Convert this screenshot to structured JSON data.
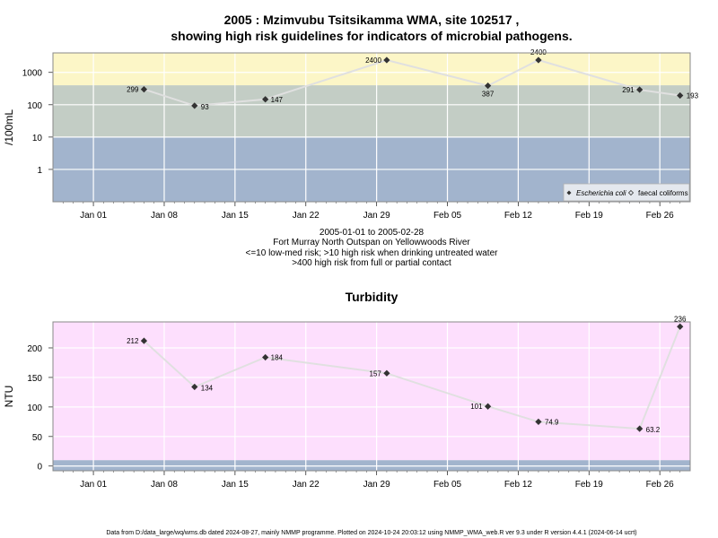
{
  "chart_data": [
    {
      "type": "line",
      "title": "2005 : Mzimvubu Tsitsikamma WMA, site 102517 ,",
      "subtitle": "showing high risk guidelines for indicators of microbial pathogens.",
      "xlabel": "",
      "ylabel": "/100mL",
      "y_scale": "log",
      "ylim": [
        0.1,
        4000
      ],
      "xlim": [
        "2004-12-28",
        "2005-03-01"
      ],
      "x_ticks": [
        {
          "date": "2005-01-01",
          "label": "Jan 01"
        },
        {
          "date": "2005-01-08",
          "label": "Jan 08"
        },
        {
          "date": "2005-01-15",
          "label": "Jan 15"
        },
        {
          "date": "2005-01-22",
          "label": "Jan 22"
        },
        {
          "date": "2005-01-29",
          "label": "Jan 29"
        },
        {
          "date": "2005-02-05",
          "label": "Feb 05"
        },
        {
          "date": "2005-02-12",
          "label": "Feb 12"
        },
        {
          "date": "2005-02-19",
          "label": "Feb 19"
        },
        {
          "date": "2005-02-26",
          "label": "Feb 26"
        }
      ],
      "y_ticks": [
        {
          "value": 1,
          "label": "1"
        },
        {
          "value": 10,
          "label": "10"
        },
        {
          "value": 100,
          "label": "100"
        },
        {
          "value": 1000,
          "label": "1000"
        }
      ],
      "bands": [
        {
          "from": 0.1,
          "to": 10,
          "color": "#a2b4cd"
        },
        {
          "from": 10,
          "to": 400,
          "color": "#c3cdc5"
        },
        {
          "from": 400,
          "to": 4000,
          "color": "#fcf6c7"
        }
      ],
      "grid": true,
      "legend_position": "bottom-right",
      "series": [
        {
          "name": "Escherichia coli",
          "marker": "filled-diamond",
          "color": "#333333",
          "points": [
            {
              "x": "2005-01-06",
              "y": 299,
              "label": "299"
            },
            {
              "x": "2005-01-11",
              "y": 93,
              "label": "93"
            },
            {
              "x": "2005-01-18",
              "y": 147,
              "label": "147"
            },
            {
              "x": "2005-01-30",
              "y": 2400,
              "label": "2400"
            },
            {
              "x": "2005-02-09",
              "y": 387,
              "label": "387"
            },
            {
              "x": "2005-02-14",
              "y": 2400,
              "label": "2400"
            },
            {
              "x": "2005-02-24",
              "y": 291,
              "label": "291"
            },
            {
              "x": "2005-02-28",
              "y": 193,
              "label": "193"
            }
          ]
        },
        {
          "name": "faecal coliforms",
          "marker": "open-diamond",
          "color": "#333333",
          "points": []
        }
      ],
      "notes": [
        "2005-01-01 to 2005-02-28",
        "Fort Murray North Outspan on Yellowwoods River",
        "<=10 low-med risk; >10 high risk when drinking untreated water",
        ">400 high risk from full or partial contact"
      ]
    },
    {
      "type": "line",
      "title": "Turbidity",
      "xlabel": "",
      "ylabel": "NTU",
      "ylim": [
        -8,
        244
      ],
      "xlim": [
        "2004-12-28",
        "2005-03-01"
      ],
      "x_ticks": [
        {
          "date": "2005-01-01",
          "label": "Jan 01"
        },
        {
          "date": "2005-01-08",
          "label": "Jan 08"
        },
        {
          "date": "2005-01-15",
          "label": "Jan 15"
        },
        {
          "date": "2005-01-22",
          "label": "Jan 22"
        },
        {
          "date": "2005-01-29",
          "label": "Jan 29"
        },
        {
          "date": "2005-02-05",
          "label": "Feb 05"
        },
        {
          "date": "2005-02-12",
          "label": "Feb 12"
        },
        {
          "date": "2005-02-19",
          "label": "Feb 19"
        },
        {
          "date": "2005-02-26",
          "label": "Feb 26"
        }
      ],
      "y_ticks": [
        {
          "value": 0,
          "label": "0"
        },
        {
          "value": 50,
          "label": "50"
        },
        {
          "value": 100,
          "label": "100"
        },
        {
          "value": 150,
          "label": "150"
        },
        {
          "value": 200,
          "label": "200"
        }
      ],
      "bands": [
        {
          "from": -8,
          "to": 10,
          "color": "#a2b4cd"
        },
        {
          "from": 10,
          "to": 244,
          "color": "#fddffd"
        }
      ],
      "grid": true,
      "series": [
        {
          "name": "",
          "marker": "filled-diamond",
          "color": "#333333",
          "points": [
            {
              "x": "2005-01-06",
              "y": 212,
              "label": "212"
            },
            {
              "x": "2005-01-11",
              "y": 134,
              "label": "134"
            },
            {
              "x": "2005-01-18",
              "y": 184,
              "label": "184"
            },
            {
              "x": "2005-01-30",
              "y": 157,
              "label": "157"
            },
            {
              "x": "2005-02-09",
              "y": 101,
              "label": "101"
            },
            {
              "x": "2005-02-14",
              "y": 74.9,
              "label": "74.9"
            },
            {
              "x": "2005-02-24",
              "y": 63.2,
              "label": "63.2"
            },
            {
              "x": "2005-02-28",
              "y": 236,
              "label": "236"
            }
          ]
        }
      ]
    }
  ],
  "footer": "Data from D:/data_large/wq/wms.db dated 2024-08-27, mainly NMMP programme. Plotted on 2024-10-24 20:03:12 using NMMP_WMA_web.R ver 9.3 under R version 4.4.1 (2024-06-14 ucrt)"
}
